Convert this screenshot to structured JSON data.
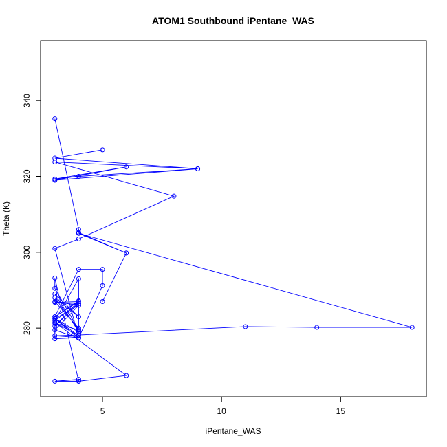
{
  "chart_data": {
    "type": "line",
    "title": "ATOM1 Southbound iPentane_WAS",
    "xlabel": "iPentane_WAS",
    "ylabel": "Theta (K)",
    "xlim": [
      2.4,
      18.6
    ],
    "ylim": [
      261.9,
      355.8
    ],
    "x_ticks": [
      5,
      10,
      15
    ],
    "y_ticks": [
      280,
      300,
      320,
      340
    ],
    "grid": false,
    "legend": "none",
    "line_color": "#0000ff",
    "series": [
      {
        "markers": "open-circle",
        "points": [
          [
            3,
            335.2
          ],
          [
            4,
            306.0
          ],
          [
            4,
            305.2
          ],
          [
            6,
            299.8
          ],
          [
            5,
            287.0
          ],
          [
            6,
            299.8
          ],
          [
            4,
            305.0
          ],
          [
            18,
            280.2
          ],
          [
            14,
            280.2
          ],
          [
            11,
            280.4
          ],
          [
            4,
            278.2
          ],
          [
            3,
            278.0
          ],
          [
            4,
            277.5
          ],
          [
            3,
            277.2
          ],
          [
            3,
            283.0
          ],
          [
            4,
            295.5
          ],
          [
            5,
            295.5
          ],
          [
            5,
            291.2
          ],
          [
            4,
            277.4
          ],
          [
            3,
            279.5
          ],
          [
            4,
            286.0
          ],
          [
            4,
            286.5
          ],
          [
            3,
            286.8
          ],
          [
            4,
            287.0
          ],
          [
            3,
            283.0
          ],
          [
            4,
            287.2
          ],
          [
            3,
            280.5
          ],
          [
            4,
            286.5
          ],
          [
            3,
            282.0
          ],
          [
            4,
            293.0
          ],
          [
            4,
            280.0
          ],
          [
            3,
            287.0
          ],
          [
            4,
            286.0
          ],
          [
            3,
            282.5
          ],
          [
            4,
            279.0
          ],
          [
            3,
            289.0
          ],
          [
            4,
            283.0
          ],
          [
            3,
            288.0
          ],
          [
            4,
            279.5
          ],
          [
            3,
            281.3
          ],
          [
            4,
            279.5
          ],
          [
            3,
            290.5
          ],
          [
            3,
            293.2
          ],
          [
            4,
            266.0
          ],
          [
            4,
            266.5
          ],
          [
            3,
            266.0
          ],
          [
            4,
            266.0
          ],
          [
            6,
            267.5
          ],
          [
            3,
            281.5
          ],
          [
            4,
            278.0
          ],
          [
            3,
            282.5
          ],
          [
            4,
            277.4
          ],
          [
            3,
            301.0
          ],
          [
            4,
            303.5
          ],
          [
            8,
            314.8
          ],
          [
            3,
            323.8
          ],
          [
            9,
            322.0
          ],
          [
            3,
            319.0
          ],
          [
            6,
            322.5
          ],
          [
            3,
            319.3
          ],
          [
            4,
            320.0
          ],
          [
            9,
            322.0
          ],
          [
            3,
            324.8
          ],
          [
            5,
            327.0
          ]
        ]
      }
    ]
  }
}
